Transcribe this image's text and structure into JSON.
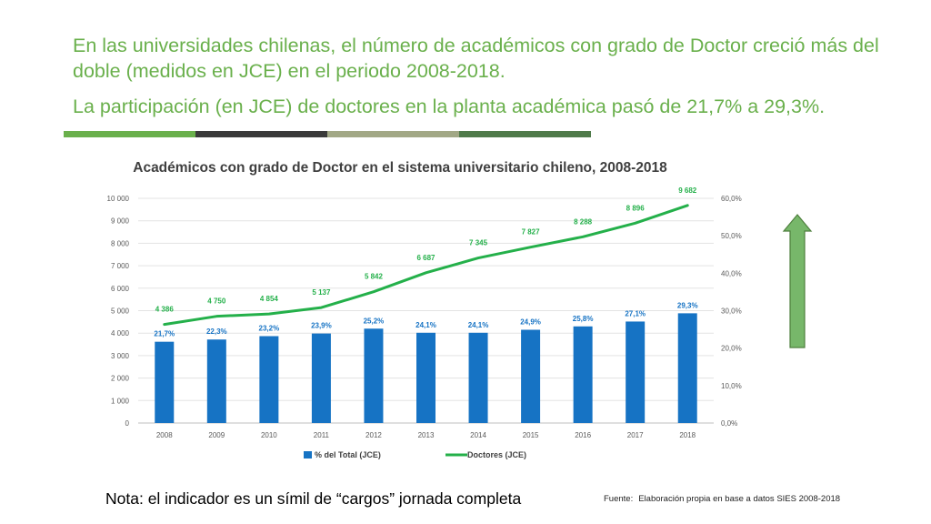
{
  "header": {
    "line1": "En las universidades chilenas, el número de académicos con grado de Doctor creció más del doble (medidos en JCE) en el periodo 2008-2018.",
    "line2": "La participación (en JCE) de doctores en la planta académica pasó de 21,7% a 29,3%."
  },
  "colors": {
    "headline": "#6ab04c",
    "band": [
      "#6ab04c",
      "#3a3a3a",
      "#a2a886",
      "#4f7a4a"
    ],
    "bar": "#1673c4",
    "line": "#24b04a",
    "arrow_fill": "#77b76a",
    "arrow_stroke": "#4e7f3d"
  },
  "chart_data": {
    "type": "bar",
    "title": "Académicos con grado de Doctor en el sistema universitario chileno, 2008-2018",
    "categories": [
      "2008",
      "2009",
      "2010",
      "2011",
      "2012",
      "2013",
      "2014",
      "2015",
      "2016",
      "2017",
      "2018"
    ],
    "series": [
      {
        "name": "% del Total (JCE)",
        "type": "bar",
        "axis": "right",
        "values": [
          21.7,
          22.3,
          23.2,
          23.9,
          25.2,
          24.1,
          24.1,
          24.9,
          25.8,
          27.1,
          29.3
        ],
        "labels": [
          "21,7%",
          "22,3%",
          "23,2%",
          "23,9%",
          "25,2%",
          "24,1%",
          "24,1%",
          "24,9%",
          "25,8%",
          "27,1%",
          "29,3%"
        ]
      },
      {
        "name": "Doctores (JCE)",
        "type": "line",
        "axis": "left",
        "values": [
          4386,
          4750,
          4854,
          5137,
          5842,
          6687,
          7345,
          7827,
          8288,
          8896,
          9682
        ],
        "labels": [
          "4 386",
          "4 750",
          "4 854",
          "5 137",
          "5 842",
          "6 687",
          "7 345",
          "7 827",
          "8 288",
          "8 896",
          "9 682"
        ]
      }
    ],
    "y_left": {
      "min": 0,
      "max": 10000,
      "ticks": [
        "0",
        "1 000",
        "2 000",
        "3 000",
        "4 000",
        "5 000",
        "6 000",
        "7 000",
        "8 000",
        "9 000",
        "10 000"
      ]
    },
    "y_right": {
      "min": 0,
      "max": 60,
      "ticks": [
        "0,0%",
        "10,0%",
        "20,0%",
        "30,0%",
        "40,0%",
        "50,0%",
        "60,0%"
      ]
    },
    "grid": true,
    "legend_position": "bottom"
  },
  "footer": {
    "note": "Nota: el indicador es un símil de “cargos” jornada completa",
    "source_label": "Fuente:",
    "source_text": "Elaboración propia en base a datos SIES 2008-2018"
  }
}
